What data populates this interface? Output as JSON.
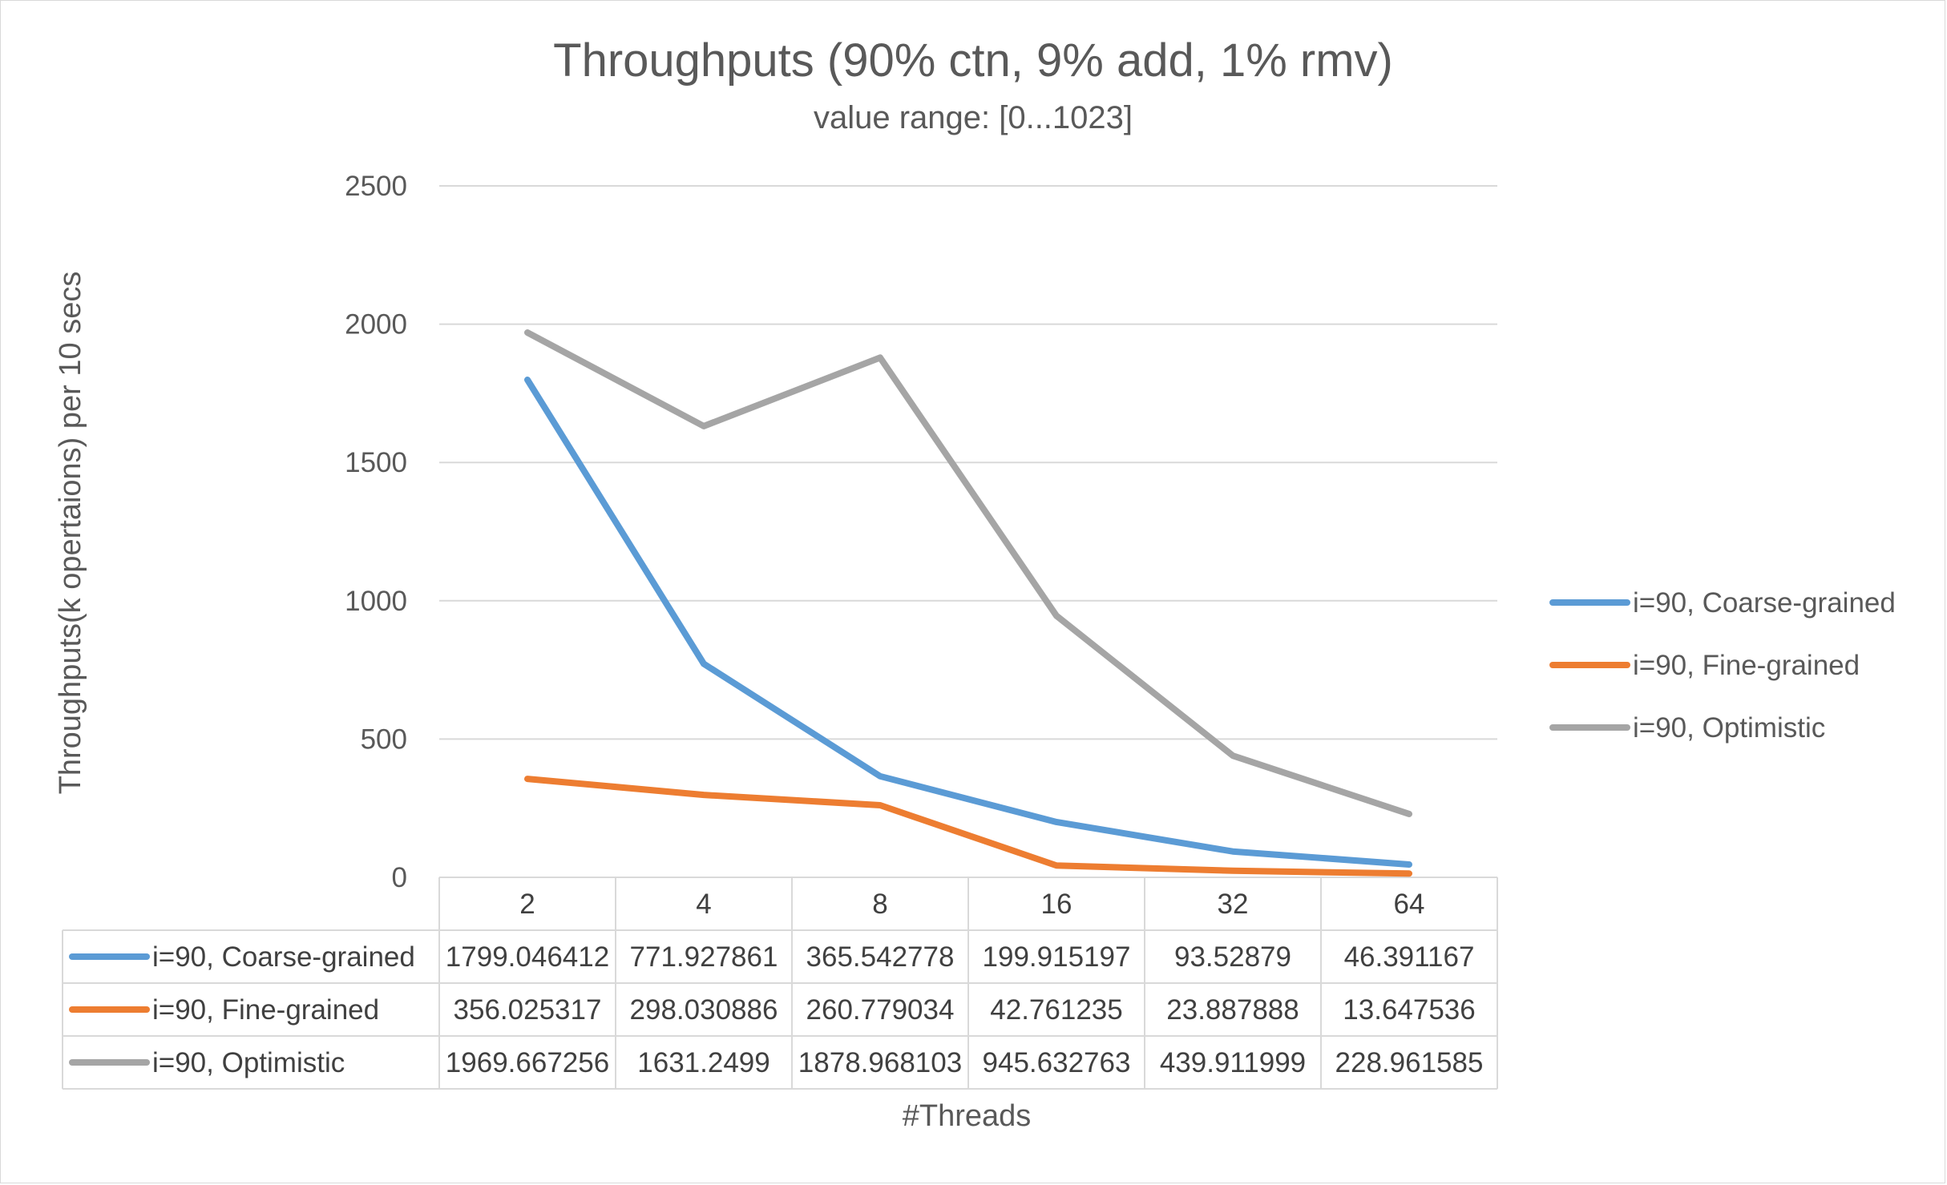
{
  "chart_data": {
    "type": "line",
    "title": "Throughputs (90% ctn, 9% add, 1% rmv)",
    "subtitle": "value range: [0...1023]",
    "xlabel": "#Threads",
    "ylabel": "Throughputs(k opertaions) per 10 secs",
    "categories": [
      "2",
      "4",
      "8",
      "16",
      "32",
      "64"
    ],
    "ylim": [
      0,
      2500
    ],
    "yticks": [
      "0",
      "500",
      "1000",
      "1500",
      "2000",
      "2500"
    ],
    "grid": true,
    "legend_position": "right",
    "data_table": true,
    "series": [
      {
        "name": "i=90, Coarse-grained",
        "color": "#5b9bd5",
        "values": [
          1799.046412,
          771.927861,
          365.542778,
          199.915197,
          93.52879,
          46.391167
        ],
        "labels": [
          "1799.046412",
          "771.927861",
          "365.542778",
          "199.915197",
          "93.52879",
          "46.391167"
        ]
      },
      {
        "name": "i=90, Fine-grained",
        "color": "#ed7d31",
        "values": [
          356.025317,
          298.030886,
          260.779034,
          42.761235,
          23.887888,
          13.647536
        ],
        "labels": [
          "356.025317",
          "298.030886",
          "260.779034",
          "42.761235",
          "23.887888",
          "13.647536"
        ]
      },
      {
        "name": "i=90, Optimistic",
        "color": "#a5a5a5",
        "values": [
          1969.667256,
          1631.2499,
          1878.968103,
          945.632763,
          439.911999,
          228.961585
        ],
        "labels": [
          "1969.667256",
          "1631.2499",
          "1878.968103",
          "945.632763",
          "439.911999",
          "228.961585"
        ]
      }
    ]
  }
}
